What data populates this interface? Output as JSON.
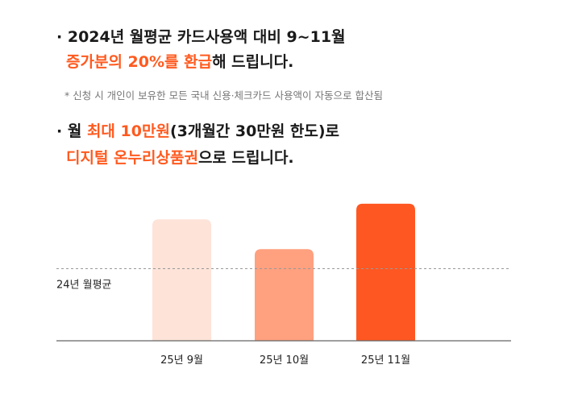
{
  "bullets": {
    "line1_dot": "·",
    "line1": "2024년 월평균 카드사용액 대비 9~11월",
    "line2_highlight": "증가분의 20%를 환급",
    "line2_rest": "해 드립니다.",
    "note": "* 신청 시 개인이 보유한 모든 국내 신용·체크카드 사용액이 자동으로 합산됨",
    "line3_dot": "·",
    "line3_prefix": "월 ",
    "line3_highlight": "최대 10만원",
    "line3_rest": "(3개월간 30만원 한도)로",
    "line4_highlight": "디지털 온누리상품권",
    "line4_rest": "으로 드립니다."
  },
  "chart_data": {
    "type": "bar",
    "categories": [
      "25년 9월",
      "25년 10월",
      "25년 11월"
    ],
    "values": [
      155,
      117,
      175
    ],
    "ylim": [
      0,
      180
    ],
    "colors": [
      "#fde3d8",
      "#ffa07f",
      "#ff5722"
    ],
    "reference_line": {
      "label": "24년 월평균",
      "value": 92
    },
    "grid": false
  }
}
